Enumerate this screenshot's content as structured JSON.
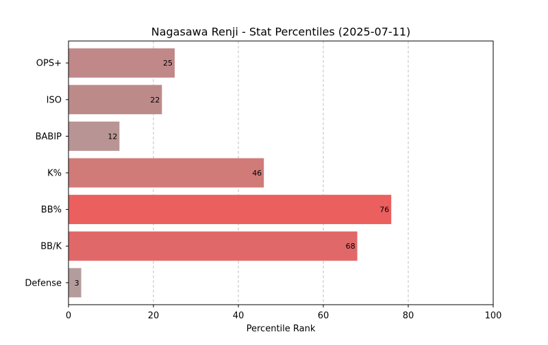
{
  "chart_data": {
    "type": "bar",
    "orientation": "horizontal",
    "title": "Nagasawa Renji - Stat Percentiles (2025-07-11)",
    "xlabel": "Percentile Rank",
    "ylabel": "",
    "xlim": [
      0,
      100
    ],
    "xticks": [
      0,
      20,
      40,
      60,
      80,
      100
    ],
    "grid": "x dashed",
    "categories": [
      "OPS+",
      "ISO",
      "BABIP",
      "K%",
      "BB%",
      "BB/K",
      "Defense"
    ],
    "values": [
      25,
      22,
      12,
      46,
      76,
      68,
      3
    ],
    "bar_colors": [
      "#c08889",
      "#bd8a8a",
      "#b89594",
      "#d07b78",
      "#ec5f5f",
      "#e16868",
      "#b59c9c"
    ]
  }
}
